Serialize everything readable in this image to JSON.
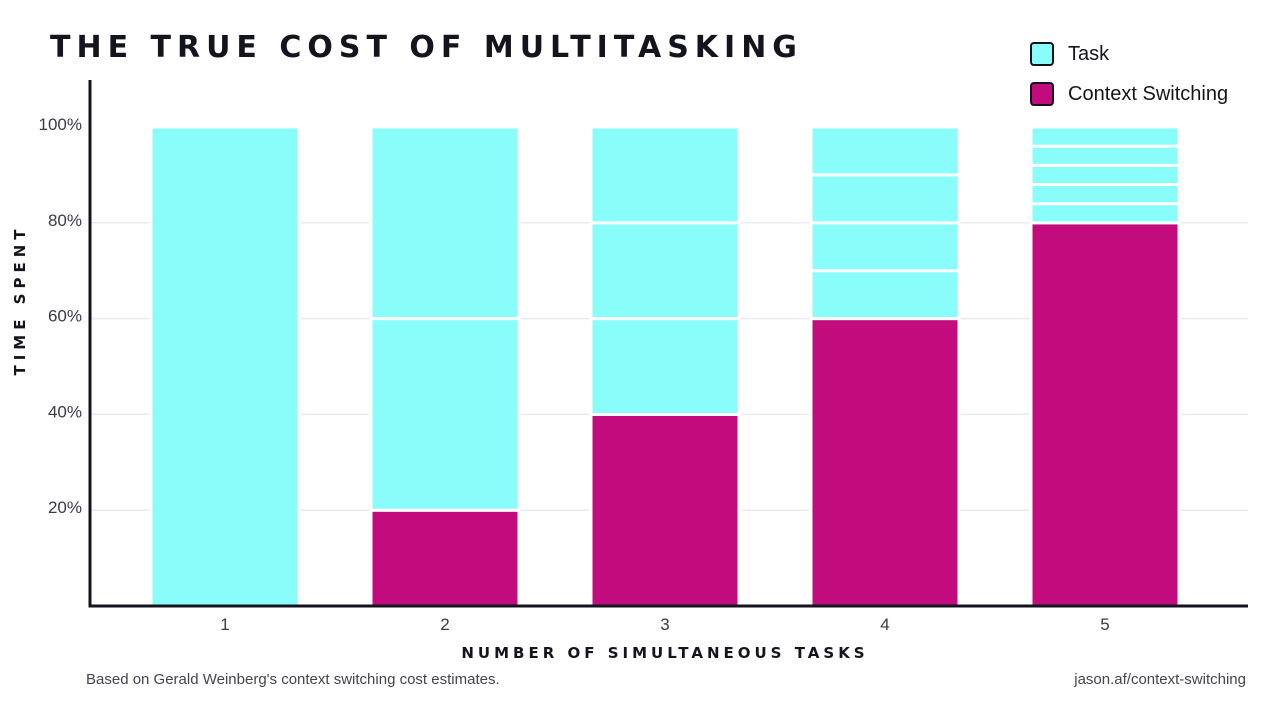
{
  "chart_data": {
    "type": "bar",
    "stacked": true,
    "title": "THE TRUE COST OF MULTITASKING",
    "xlabel": "NUMBER OF SIMULTANEOUS TASKS",
    "ylabel": "TIME SPENT",
    "categories": [
      "1",
      "2",
      "3",
      "4",
      "5"
    ],
    "yticks": [
      "20%",
      "40%",
      "60%",
      "80%",
      "100%"
    ],
    "ytick_values": [
      20,
      40,
      60,
      80,
      100
    ],
    "ylim": [
      0,
      100
    ],
    "grid": true,
    "legend_position": "top-right",
    "series": [
      {
        "name": "Context Switching",
        "color": "#c20c7e",
        "values": [
          0,
          20,
          40,
          60,
          80
        ]
      },
      {
        "name": "Task",
        "color": "#88fdfa",
        "values": [
          100,
          80,
          60,
          40,
          20
        ]
      }
    ],
    "task_segments": [
      [
        100
      ],
      [
        40,
        40
      ],
      [
        20,
        20,
        20
      ],
      [
        10,
        10,
        10,
        10
      ],
      [
        4,
        4,
        4,
        4,
        4
      ]
    ]
  },
  "legend": [
    {
      "label": "Task",
      "color": "#88fdfa"
    },
    {
      "label": "Context Switching",
      "color": "#c20c7e"
    }
  ],
  "footnote": "Based on Gerald Weinberg's context switching cost estimates.",
  "source": "jason.af/context-switching"
}
